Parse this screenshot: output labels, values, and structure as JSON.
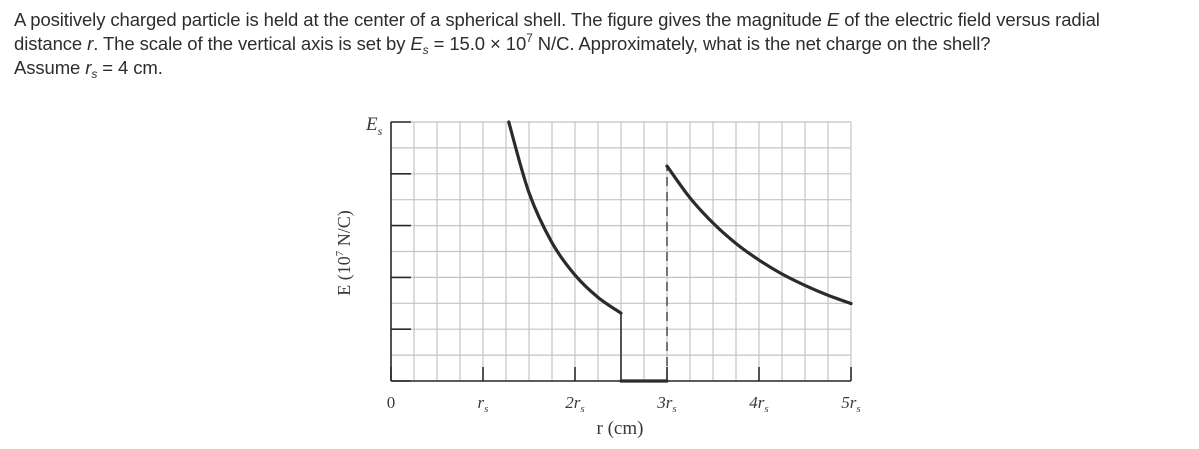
{
  "question": {
    "line1": "A positively charged particle is held at the center of a spherical shell. The figure gives the magnitude",
    "var_E": "E",
    "line1b": "of the electric field versus radial",
    "line2a": "distance",
    "var_r": "r",
    "line2b": ". The scale of the vertical axis is set by",
    "var_Es_base": "E",
    "var_Es_sub": "s",
    "line2c": "= 15.0 × 10",
    "line2c_exp": "7",
    "line2d": "N/C. Approximately, what is the net charge on the shell?",
    "line3a": "Assume",
    "var_rs_base": "r",
    "var_rs_sub": "s",
    "line3b": "= 4 cm."
  },
  "chart_data": {
    "type": "line",
    "ylabel": "E (10",
    "ylabel_exp": "7",
    "ylabel_unit": " N/C)",
    "xlabel": "r (cm)",
    "y_top_label_base": "E",
    "y_top_label_sub": "s",
    "x_tick_labels": [
      {
        "value": 0,
        "base": "0",
        "sub": ""
      },
      {
        "value": 1,
        "base": "r",
        "sub": "s"
      },
      {
        "value": 2,
        "base": "2r",
        "sub": "s"
      },
      {
        "value": 3,
        "base": "3r",
        "sub": "s"
      },
      {
        "value": 4,
        "base": "4r",
        "sub": "s"
      },
      {
        "value": 5,
        "base": "5r",
        "sub": "s"
      }
    ],
    "x_range_rs": [
      0,
      5
    ],
    "y_range_Es_fraction": [
      0,
      1
    ],
    "grid": true,
    "segments": [
      {
        "name": "",
        "x_rs": [
          1.28,
          1.5,
          1.75,
          2.0,
          2.25,
          2.5
        ],
        "y_Es": [
          1.0,
          0.727,
          0.534,
          0.409,
          0.323,
          0.262
        ]
      },
      {
        "name": "",
        "x_rs": [
          2.5,
          2.75,
          3.0
        ],
        "y_Es": [
          0.0,
          0.0,
          0.0
        ]
      },
      {
        "name": "",
        "x_rs": [
          3.0,
          3.25,
          3.5,
          3.75,
          4.0,
          4.25,
          4.5,
          4.75,
          5.0
        ],
        "y_Es": [
          0.83,
          0.707,
          0.61,
          0.531,
          0.467,
          0.413,
          0.369,
          0.331,
          0.299
        ]
      }
    ],
    "dashed_line_x_rs": 3.0
  }
}
